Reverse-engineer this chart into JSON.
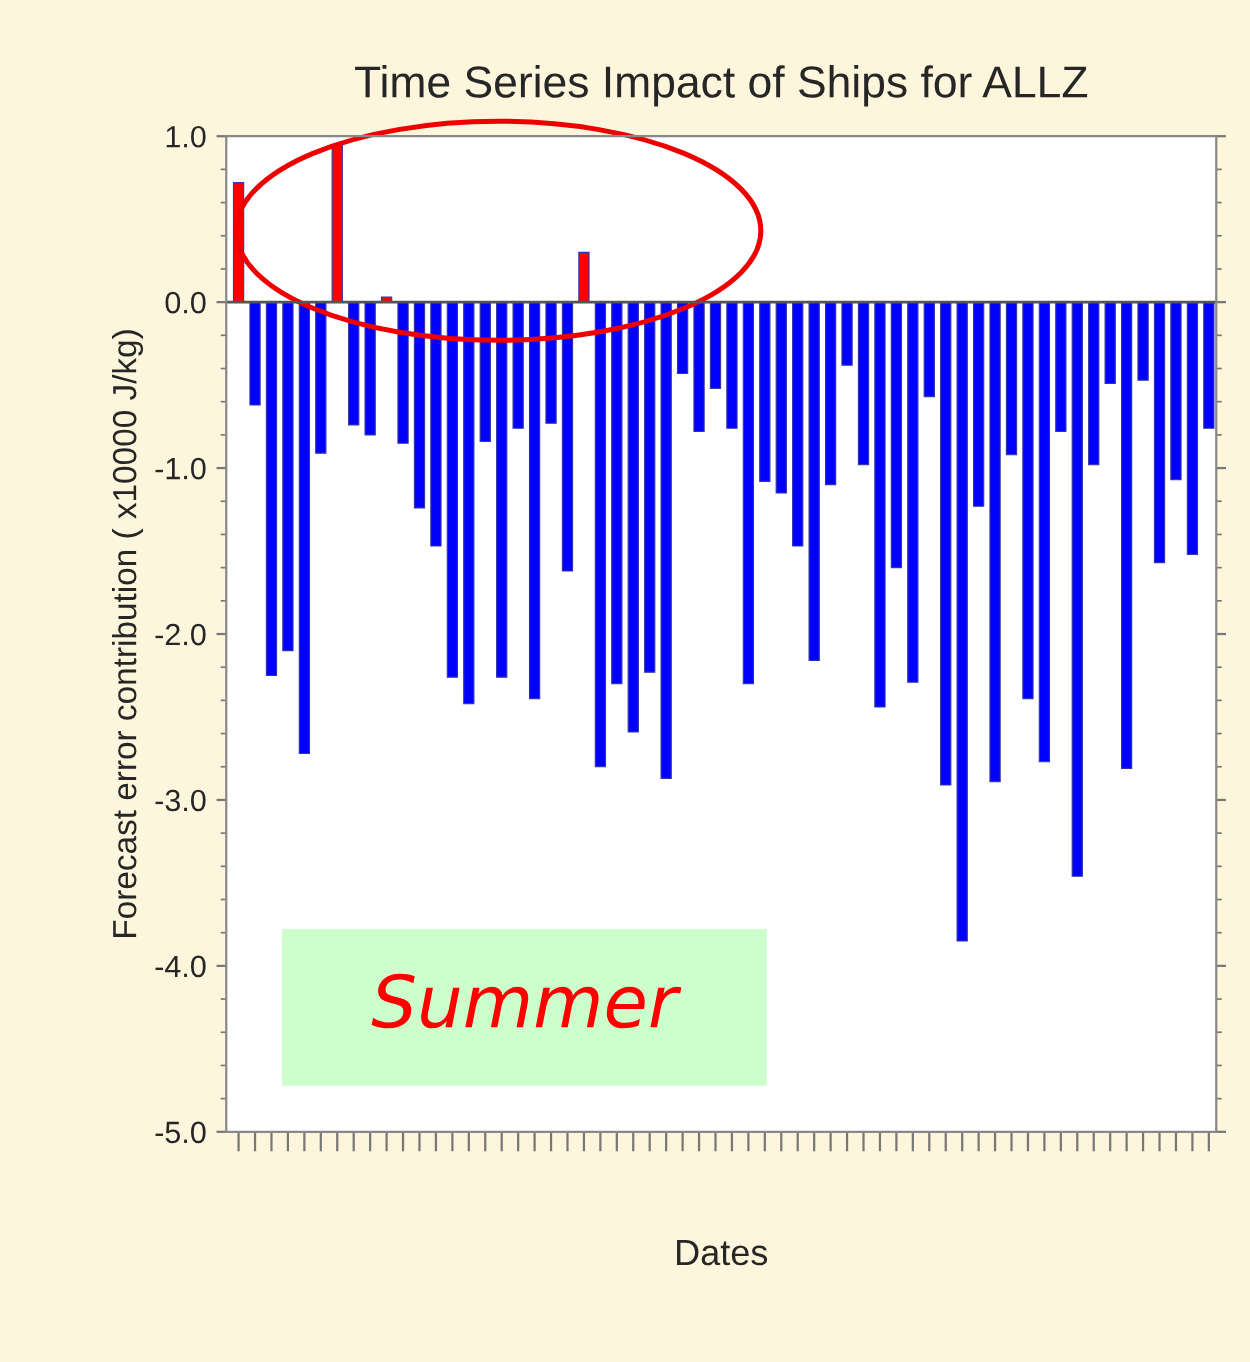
{
  "chart_data": {
    "type": "bar",
    "title": "Time Series Impact of Ships for ALLZ",
    "xlabel": "Dates",
    "ylabel": "Forecast error contribution ( x10000 J/kg)",
    "categories": [
      null,
      null,
      null,
      null,
      null,
      null,
      null,
      null,
      null,
      null,
      null,
      null,
      null,
      null,
      null,
      null,
      null,
      null,
      null,
      null,
      null,
      null,
      null,
      null,
      null,
      null,
      null,
      null,
      null,
      null,
      null,
      null,
      null,
      null,
      null,
      null,
      null,
      null,
      null,
      null,
      null,
      null,
      null,
      null,
      null,
      null,
      null,
      null,
      null,
      null,
      null,
      null,
      null,
      null,
      null,
      null,
      null,
      null,
      null,
      null
    ],
    "values": [
      0.72,
      -0.62,
      -2.25,
      -2.1,
      -2.72,
      -0.91,
      0.95,
      -0.74,
      -0.8,
      0.03,
      -0.85,
      -1.24,
      -1.47,
      -2.26,
      -2.42,
      -0.84,
      -2.26,
      -0.76,
      -2.39,
      -0.73,
      -1.62,
      0.3,
      -2.8,
      -2.3,
      -2.59,
      -2.23,
      -2.87,
      -0.43,
      -0.78,
      -0.52,
      -0.76,
      -2.3,
      -1.08,
      -1.15,
      -1.47,
      -2.16,
      -1.1,
      -0.38,
      -0.98,
      -2.44,
      -1.6,
      -2.29,
      -0.57,
      -2.91,
      -3.85,
      -1.23,
      -2.89,
      -0.92,
      -2.39,
      -2.77,
      -0.78,
      -3.46,
      -0.98,
      -0.49,
      -2.81,
      -0.47,
      -1.57,
      -1.07,
      -1.52,
      -0.76
    ],
    "colors": [
      "#ff0000",
      "#0000ff",
      "#0000ff",
      "#0000ff",
      "#0000ff",
      "#0000ff",
      "#ff0000",
      "#0000ff",
      "#0000ff",
      "#ff0000",
      "#0000ff",
      "#0000ff",
      "#0000ff",
      "#0000ff",
      "#0000ff",
      "#0000ff",
      "#0000ff",
      "#0000ff",
      "#0000ff",
      "#0000ff",
      "#0000ff",
      "#ff0000",
      "#0000ff",
      "#0000ff",
      "#0000ff",
      "#0000ff",
      "#0000ff",
      "#0000ff",
      "#0000ff",
      "#0000ff",
      "#0000ff",
      "#0000ff",
      "#0000ff",
      "#0000ff",
      "#0000ff",
      "#0000ff",
      "#0000ff",
      "#0000ff",
      "#0000ff",
      "#0000ff",
      "#0000ff",
      "#0000ff",
      "#0000ff",
      "#0000ff",
      "#0000ff",
      "#0000ff",
      "#0000ff",
      "#0000ff",
      "#0000ff",
      "#0000ff",
      "#0000ff",
      "#0000ff",
      "#0000ff",
      "#0000ff",
      "#0000ff",
      "#0000ff",
      "#0000ff",
      "#0000ff",
      "#0000ff",
      "#0000ff"
    ],
    "ylim": [
      -5,
      1
    ],
    "yticks": [
      {
        "value": -5,
        "label": "-5.0"
      },
      {
        "value": -4,
        "label": "-4.0"
      },
      {
        "value": -3,
        "label": "-3.0"
      },
      {
        "value": -2,
        "label": "-2.0"
      },
      {
        "value": -1,
        "label": "-1.0"
      },
      {
        "value": 0,
        "label": "0.0"
      },
      {
        "value": 1,
        "label": "1.0"
      }
    ],
    "annotations": [
      "Summer"
    ]
  }
}
